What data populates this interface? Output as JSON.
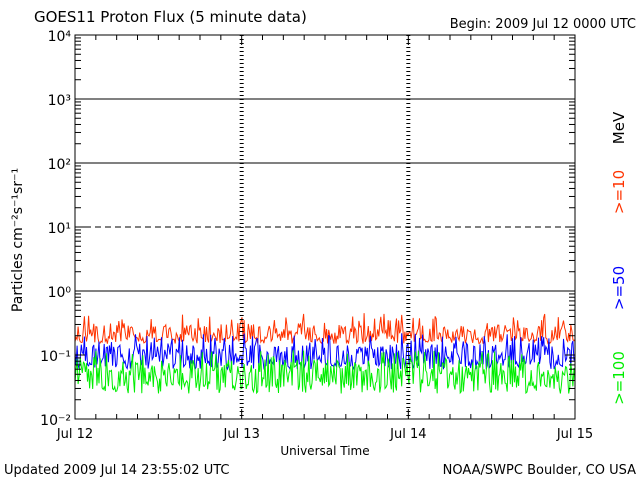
{
  "header": {
    "title": "GOES11 Proton Flux (5 minute data)",
    "begin": "Begin: 2009 Jul 12 0000 UTC"
  },
  "footer": {
    "updated": "Updated 2009 Jul 14 23:55:02 UTC",
    "credit": "NOAA/SWPC Boulder, CO USA"
  },
  "chart_data": {
    "type": "line",
    "title": "GOES11 Proton Flux (5 minute data)",
    "xlabel": "Universal Time",
    "ylabel": "Particles cm⁻²s⁻¹sr⁻¹",
    "yscale": "log",
    "ylim": [
      0.01,
      10000
    ],
    "x_ticks": [
      "Jul 12",
      "Jul 13",
      "Jul 14",
      "Jul 15"
    ],
    "y_ticks": [
      "10⁻²",
      "10⁻¹",
      "10⁰",
      "10¹",
      "10²",
      "10³",
      "10⁴"
    ],
    "thresholds": [
      {
        "value": 10,
        "style": "dashed"
      },
      {
        "value": 100,
        "style": "solid"
      },
      {
        "value": 1000,
        "style": "solid"
      },
      {
        "value": 1,
        "style": "solid"
      }
    ],
    "legend_unit": "MeV",
    "series": [
      {
        "name": ">=10",
        "color": "#ff3300",
        "band_low": 0.15,
        "band_high": 0.45,
        "typical": 0.22
      },
      {
        "name": ">=50",
        "color": "#0000ff",
        "band_low": 0.06,
        "band_high": 0.22,
        "typical": 0.1
      },
      {
        "name": ">=100",
        "color": "#00ee00",
        "band_low": 0.025,
        "band_high": 0.12,
        "typical": 0.05
      }
    ]
  }
}
